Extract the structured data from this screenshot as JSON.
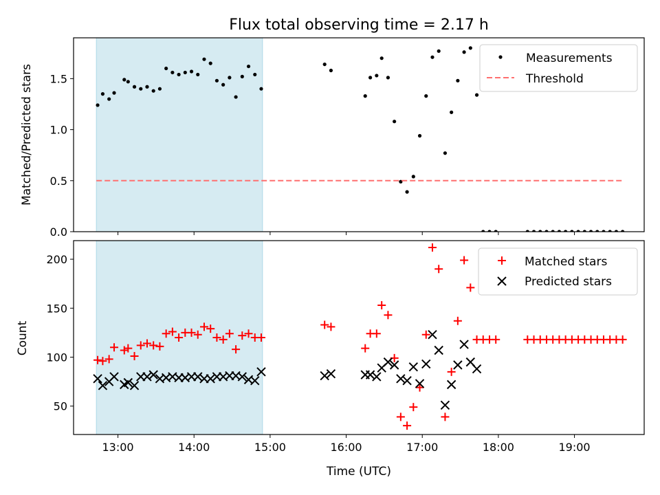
{
  "title": "Flux total observing time = 2.17 h",
  "colors": {
    "measure": "#000000",
    "threshold": "#ff6f6f",
    "matched": "#ff0000",
    "predicted": "#000000",
    "shade": "#add8e6"
  },
  "chart_data": [
    {
      "type": "scatter",
      "title": "Flux total observing time = 2.17 h",
      "xlabel": "",
      "ylabel": "Matched/Predicted stars",
      "xlim": [
        "12:25",
        "19:55"
      ],
      "ylim": [
        0,
        1.9
      ],
      "yticks": [
        0.0,
        0.5,
        1.0,
        1.5
      ],
      "yticklabels": [
        "0.0",
        "0.5",
        "1.0",
        "1.5"
      ],
      "shaded_interval": [
        "12:43",
        "14:54"
      ],
      "legend": {
        "placement": "top-right"
      },
      "series": [
        {
          "name": "Measurements",
          "marker": "dot",
          "x": [
            "12:44",
            "12:48",
            "12:53",
            "12:57",
            "13:05",
            "13:08",
            "13:13",
            "13:18",
            "13:23",
            "13:28",
            "13:33",
            "13:38",
            "13:43",
            "13:48",
            "13:53",
            "13:58",
            "14:03",
            "14:08",
            "14:13",
            "14:18",
            "14:23",
            "14:28",
            "14:33",
            "14:38",
            "14:43",
            "14:48",
            "14:53",
            "15:43",
            "15:48",
            "16:15",
            "16:19",
            "16:24",
            "16:28",
            "16:33",
            "16:38",
            "16:43",
            "16:48",
            "16:53",
            "16:58",
            "17:03",
            "17:08",
            "17:13",
            "17:18",
            "17:23",
            "17:28",
            "17:33",
            "17:38",
            "17:43",
            "17:48",
            "17:53",
            "17:58",
            "18:23",
            "18:28",
            "18:33",
            "18:38",
            "18:43",
            "18:48",
            "18:53",
            "18:58",
            "19:03",
            "19:08",
            "19:13",
            "19:18",
            "19:23",
            "19:28",
            "19:33",
            "19:38"
          ],
          "y": [
            1.24,
            1.35,
            1.3,
            1.36,
            1.49,
            1.47,
            1.42,
            1.4,
            1.42,
            1.38,
            1.4,
            1.6,
            1.56,
            1.54,
            1.56,
            1.57,
            1.54,
            1.69,
            1.65,
            1.48,
            1.44,
            1.51,
            1.32,
            1.52,
            1.62,
            1.54,
            1.4,
            1.64,
            1.58,
            1.33,
            1.51,
            1.53,
            1.7,
            1.51,
            1.08,
            0.49,
            0.39,
            0.54,
            0.94,
            1.33,
            1.71,
            1.77,
            0.77,
            1.17,
            1.48,
            1.76,
            1.8,
            1.34,
            0,
            0,
            0,
            0,
            0,
            0,
            0,
            0,
            0,
            0,
            0,
            0,
            0,
            0,
            0,
            0,
            0,
            0,
            0
          ]
        },
        {
          "name": "Threshold",
          "style": "dashed",
          "x": [
            "12:43",
            "19:38"
          ],
          "y": [
            0.5,
            0.5
          ]
        }
      ]
    },
    {
      "type": "scatter",
      "title": "",
      "xlabel": "Time (UTC)",
      "ylabel": "Count",
      "xlim": [
        "12:25",
        "19:55"
      ],
      "ylim": [
        21,
        219
      ],
      "xticks": [
        "13:00",
        "14:00",
        "15:00",
        "16:00",
        "17:00",
        "18:00",
        "19:00"
      ],
      "xticklabels": [
        "13:00",
        "14:00",
        "15:00",
        "16:00",
        "17:00",
        "18:00",
        "19:00"
      ],
      "yticks": [
        50,
        100,
        150,
        200
      ],
      "yticklabels": [
        "50",
        "100",
        "150",
        "200"
      ],
      "shaded_interval": [
        "12:43",
        "14:54"
      ],
      "legend": {
        "placement": "top-right"
      },
      "series": [
        {
          "name": "Matched stars",
          "marker": "plus",
          "x": [
            "12:44",
            "12:48",
            "12:53",
            "12:57",
            "13:05",
            "13:08",
            "13:13",
            "13:18",
            "13:23",
            "13:28",
            "13:33",
            "13:38",
            "13:43",
            "13:48",
            "13:53",
            "13:58",
            "14:03",
            "14:08",
            "14:13",
            "14:18",
            "14:23",
            "14:28",
            "14:33",
            "14:38",
            "14:43",
            "14:48",
            "14:53",
            "15:43",
            "15:48",
            "16:15",
            "16:19",
            "16:24",
            "16:28",
            "16:33",
            "16:38",
            "16:43",
            "16:48",
            "16:53",
            "16:58",
            "17:03",
            "17:08",
            "17:13",
            "17:18",
            "17:23",
            "17:28",
            "17:33",
            "17:38",
            "17:43",
            "17:48",
            "17:53",
            "17:58",
            "18:23",
            "18:28",
            "18:33",
            "18:38",
            "18:43",
            "18:48",
            "18:53",
            "18:58",
            "19:03",
            "19:08",
            "19:13",
            "19:18",
            "19:23",
            "19:28",
            "19:33",
            "19:38"
          ],
          "y": [
            97,
            96,
            98,
            110,
            107,
            109,
            101,
            112,
            114,
            112,
            111,
            124,
            126,
            120,
            125,
            125,
            123,
            131,
            129,
            120,
            118,
            124,
            108,
            122,
            124,
            120,
            120,
            133,
            131,
            109,
            124,
            124,
            153,
            143,
            99,
            39,
            30,
            49,
            69,
            123,
            212,
            190,
            39,
            85,
            137,
            199,
            171,
            118,
            118,
            118,
            118,
            118,
            118,
            118,
            118,
            118,
            118,
            118,
            118,
            118,
            118,
            118,
            118,
            118,
            118,
            118,
            118
          ]
        },
        {
          "name": "Predicted stars",
          "marker": "x",
          "x": [
            "12:44",
            "12:48",
            "12:53",
            "12:57",
            "13:05",
            "13:08",
            "13:13",
            "13:18",
            "13:23",
            "13:28",
            "13:33",
            "13:38",
            "13:43",
            "13:48",
            "13:53",
            "13:58",
            "14:03",
            "14:08",
            "14:13",
            "14:18",
            "14:23",
            "14:28",
            "14:33",
            "14:38",
            "14:43",
            "14:48",
            "14:53",
            "15:43",
            "15:48",
            "16:15",
            "16:19",
            "16:24",
            "16:28",
            "16:33",
            "16:38",
            "16:43",
            "16:48",
            "16:53",
            "16:58",
            "17:03",
            "17:08",
            "17:13",
            "17:18",
            "17:23",
            "17:28",
            "17:33",
            "17:38",
            "17:43"
          ],
          "y": [
            78,
            71,
            75,
            80,
            72,
            74,
            71,
            80,
            80,
            82,
            78,
            79,
            80,
            79,
            79,
            80,
            80,
            78,
            78,
            80,
            80,
            81,
            81,
            80,
            77,
            76,
            85,
            81,
            83,
            82,
            82,
            80,
            89,
            95,
            92,
            78,
            76,
            90,
            73,
            93,
            123,
            107,
            51,
            72,
            92,
            113,
            95,
            88
          ]
        }
      ]
    }
  ]
}
